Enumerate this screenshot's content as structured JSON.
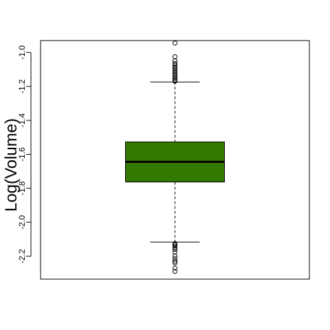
{
  "chart_data": {
    "type": "boxplot",
    "title": "",
    "xlabel": "",
    "ylabel": "Log(Volume)",
    "ylim": [
      -2.335,
      -0.93
    ],
    "yticks": [
      -1.0,
      -1.2,
      -1.4,
      -1.6,
      -1.8,
      -2.0,
      -2.2
    ],
    "ytick_labels": [
      "-1.0",
      "-1.2",
      "-1.4",
      "-1.6",
      "-1.8",
      "-2.0",
      "-2.2"
    ],
    "box_color": "#347800",
    "boxes": [
      {
        "whisker_high": -1.174,
        "q3": -1.527,
        "median": -1.644,
        "q1": -1.763,
        "whisker_low": -2.117,
        "outliers": [
          -0.945,
          -1.025,
          -1.05,
          -1.065,
          -1.075,
          -1.085,
          -1.095,
          -1.105,
          -1.115,
          -1.125,
          -1.135,
          -1.145,
          -1.155,
          -1.165,
          -1.17,
          -2.125,
          -2.132,
          -2.14,
          -2.15,
          -2.16,
          -2.175,
          -2.2,
          -2.215,
          -2.23,
          -2.24,
          -2.27,
          -2.29
        ]
      }
    ]
  }
}
